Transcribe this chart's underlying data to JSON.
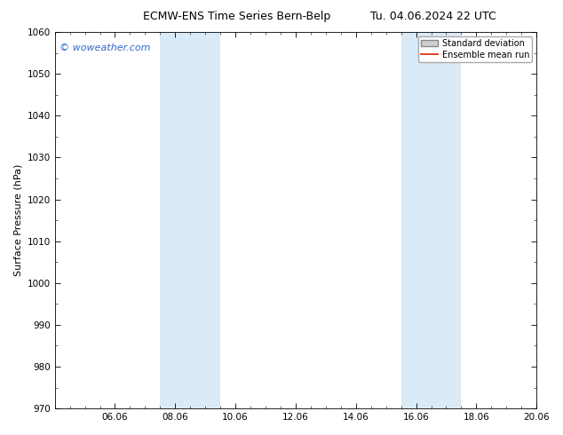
{
  "title_left": "ECMW-ENS Time Series Bern-Belp",
  "title_right": "Tu. 04.06.2024 22 UTC",
  "ylabel": "Surface Pressure (hPa)",
  "ylim": [
    970,
    1060
  ],
  "yticks": [
    970,
    980,
    990,
    1000,
    1010,
    1020,
    1030,
    1040,
    1050,
    1060
  ],
  "x_tick_labels": [
    "06.06",
    "08.06",
    "10.06",
    "12.06",
    "14.06",
    "16.06",
    "18.06",
    "20.06"
  ],
  "x_tick_positions": [
    2,
    4,
    6,
    8,
    10,
    12,
    14,
    16
  ],
  "xlim": [
    0,
    16
  ],
  "shaded_regions": [
    {
      "x_start": 3.5,
      "x_end": 5.5
    },
    {
      "x_start": 11.5,
      "x_end": 13.5
    }
  ],
  "shade_color": "#daeaf7",
  "background_color": "#ffffff",
  "watermark_text": "© woweather.com",
  "watermark_color": "#3366cc",
  "legend_std_label": "Standard deviation",
  "legend_ens_label": "Ensemble mean run",
  "legend_std_facecolor": "#d0d0d0",
  "legend_std_edgecolor": "#888888",
  "legend_ens_color": "#dd2200",
  "title_fontsize": 9,
  "axis_label_fontsize": 8,
  "tick_fontsize": 7.5,
  "watermark_fontsize": 8,
  "legend_fontsize": 7
}
